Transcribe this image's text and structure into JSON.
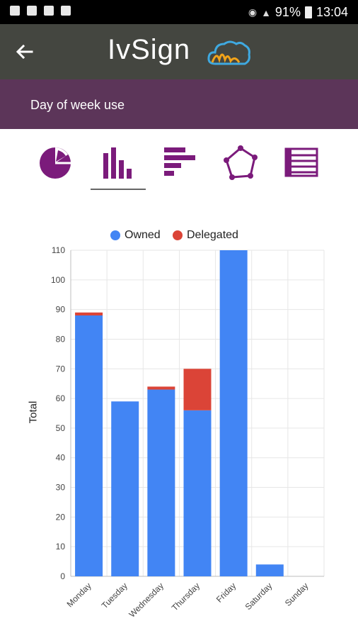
{
  "status_bar": {
    "battery": "91%",
    "time": "13:04"
  },
  "app_bar": {
    "title": "IvSign"
  },
  "sub_bar": {
    "title": "Day of week use"
  },
  "tabs": [
    {
      "icon": "pie-chart-icon",
      "selected": false
    },
    {
      "icon": "bar-chart-icon",
      "selected": true
    },
    {
      "icon": "horizontal-bar-chart-icon",
      "selected": false
    },
    {
      "icon": "radar-chart-icon",
      "selected": false
    },
    {
      "icon": "table-icon",
      "selected": false
    }
  ],
  "colors": {
    "status_bar": "#000000",
    "app_bar": "#444640",
    "sub_bar": "#5c3559",
    "tab_icon": "#7b1b7b",
    "owned": "#4285f4",
    "delegated": "#db4437"
  },
  "chart_data": {
    "type": "bar",
    "stacked": true,
    "categories": [
      "Monday",
      "Tuesday",
      "Wednesday",
      "Thursday",
      "Friday",
      "Saturday",
      "Sunday"
    ],
    "series": [
      {
        "name": "Owned",
        "values": [
          88,
          59,
          63,
          56,
          110,
          4,
          0
        ],
        "color": "#4285f4"
      },
      {
        "name": "Delegated",
        "values": [
          1,
          0,
          1,
          14,
          0,
          0,
          0
        ],
        "color": "#db4437"
      }
    ],
    "xlabel": "",
    "ylabel": "Total",
    "ylim": [
      0,
      110
    ],
    "yticks": [
      0,
      10,
      20,
      30,
      40,
      50,
      60,
      70,
      80,
      90,
      100,
      110
    ],
    "legend_position": "top",
    "grid": true
  }
}
